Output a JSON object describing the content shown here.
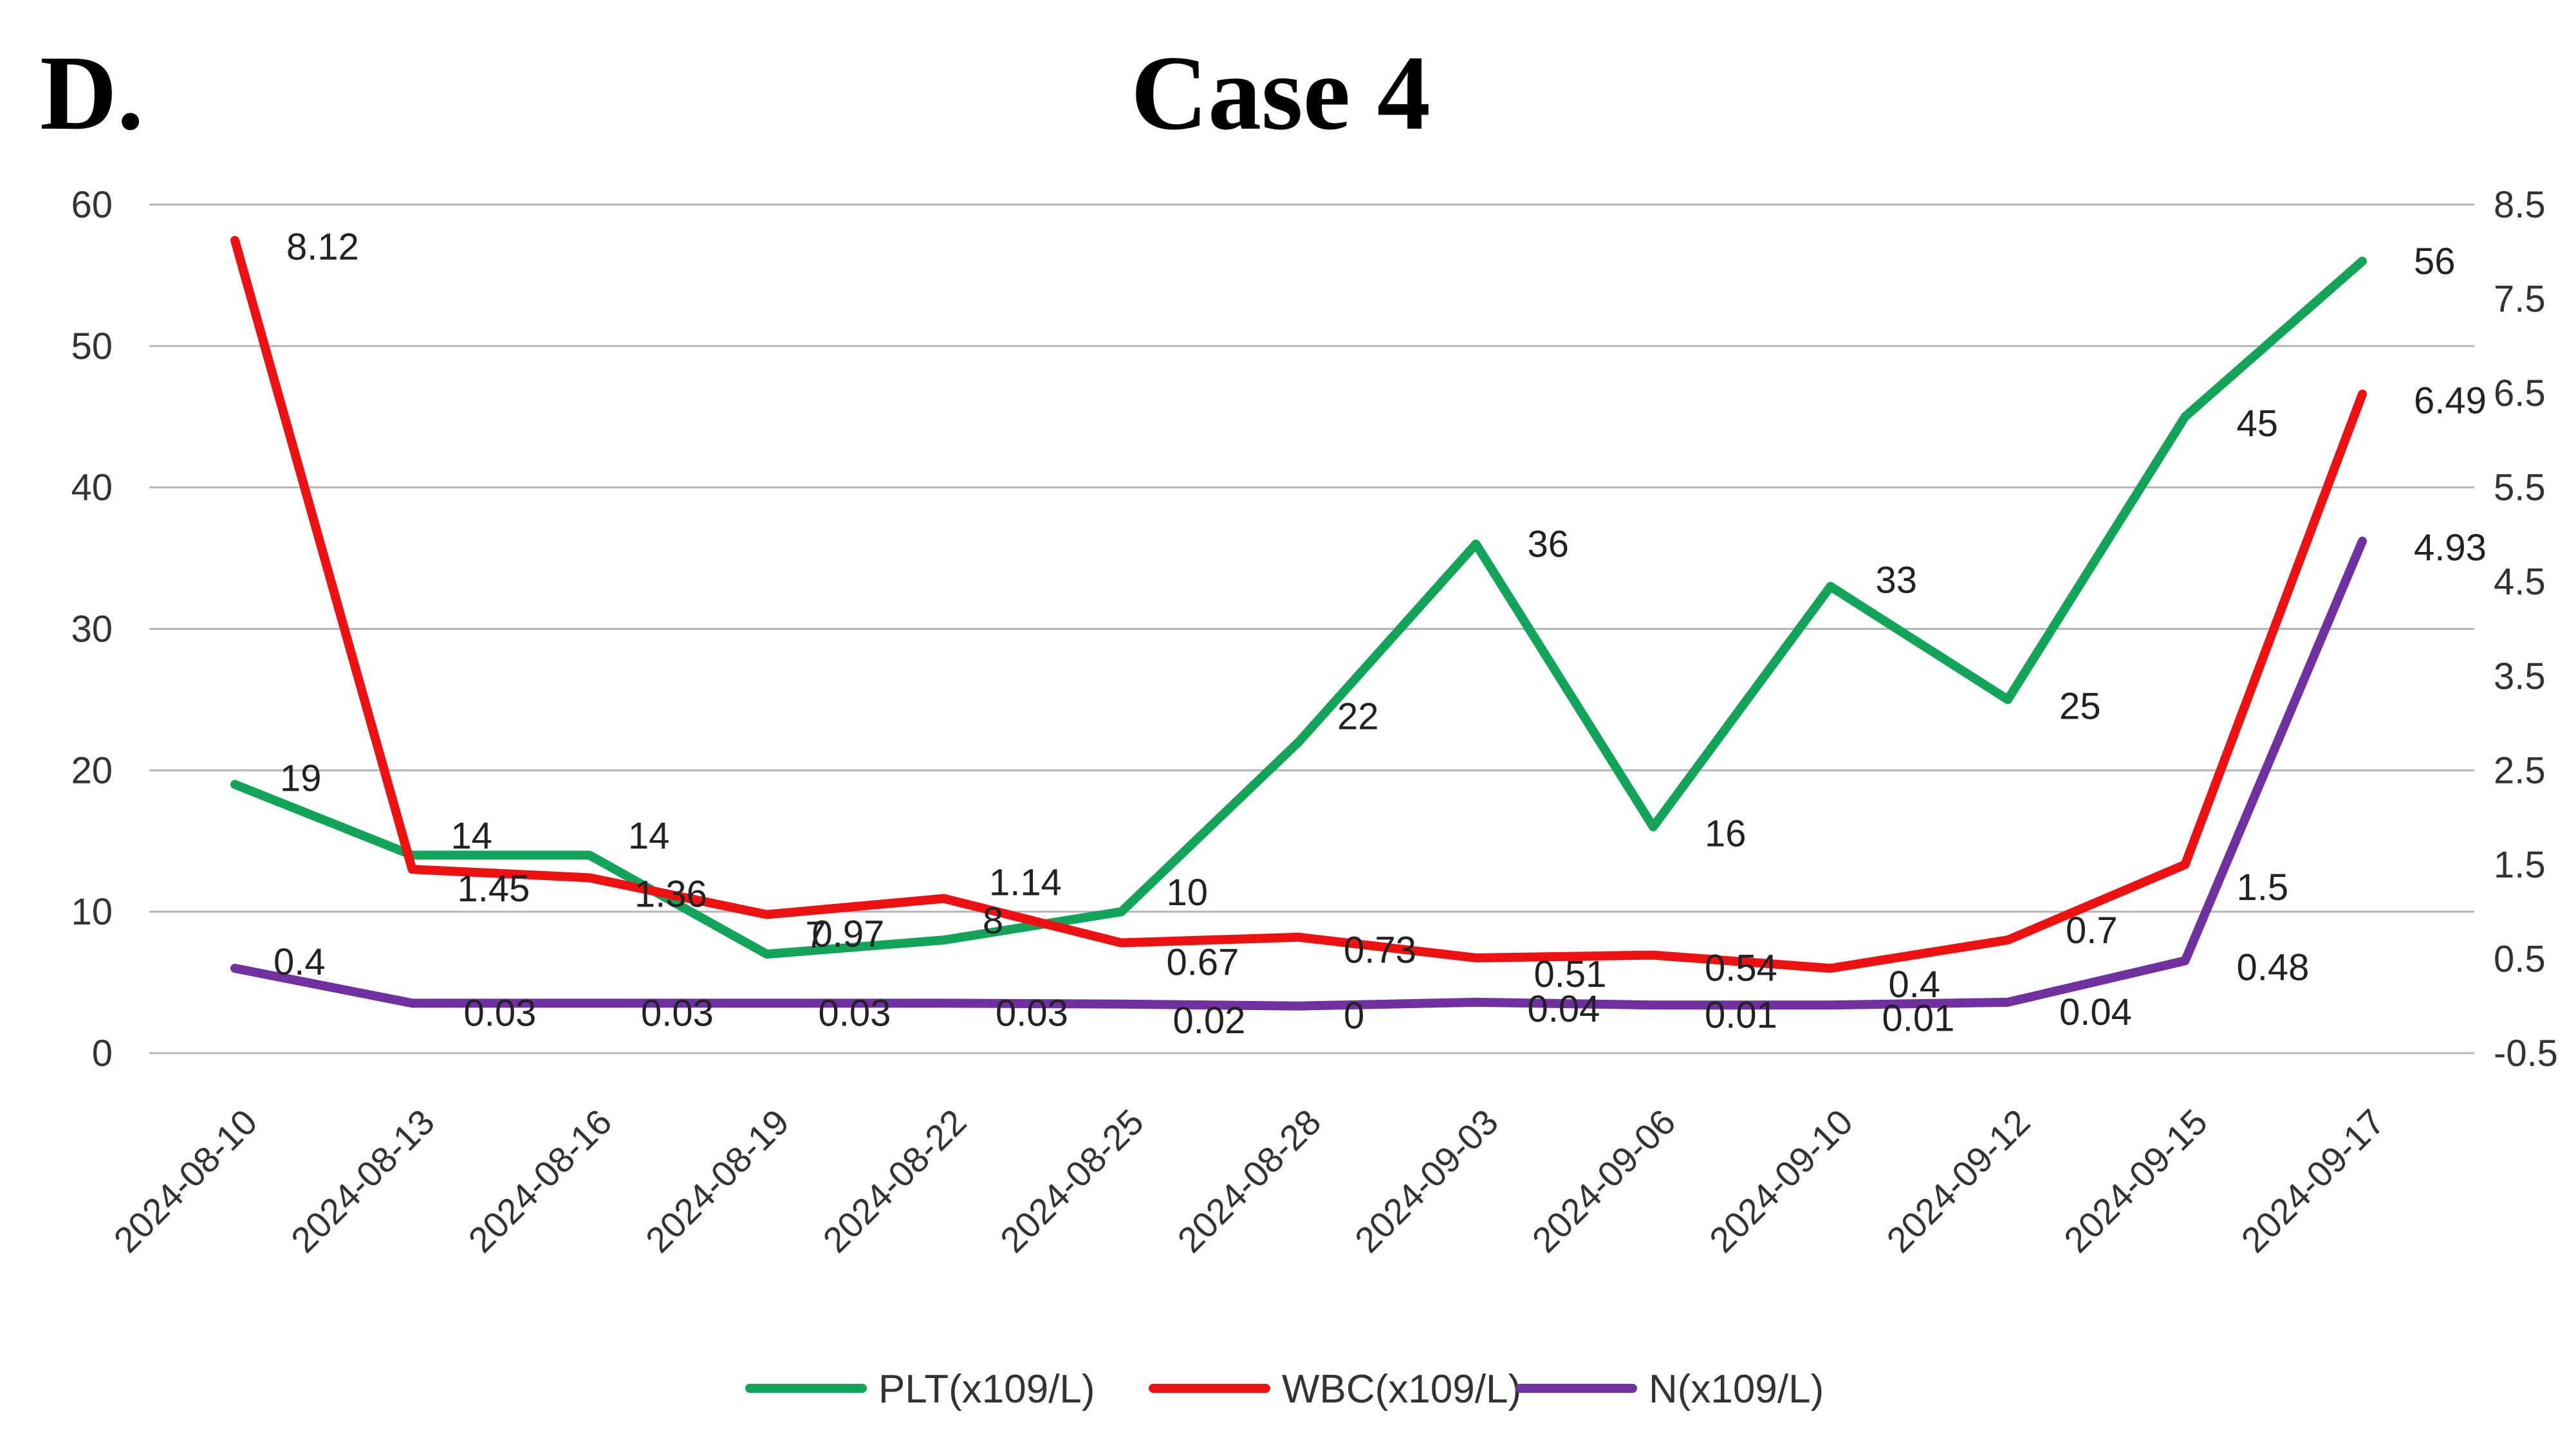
{
  "panel_label": "D.",
  "chart_data": {
    "type": "line",
    "title": "Case 4",
    "categories": [
      "2024-08-10",
      "2024-08-13",
      "2024-08-16",
      "2024-08-19",
      "2024-08-22",
      "2024-08-25",
      "2024-08-28",
      "2024-09-03",
      "2024-09-06",
      "2024-09-10",
      "2024-09-12",
      "2024-09-15",
      "2024-09-17"
    ],
    "y_left": {
      "min": 0,
      "max": 60,
      "ticks": [
        "0",
        "10",
        "20",
        "30",
        "40",
        "50",
        "60"
      ]
    },
    "y_right": {
      "min": -0.5,
      "max": 8.5,
      "ticks": [
        "-0.5",
        "0.5",
        "1.5",
        "2.5",
        "3.5",
        "4.5",
        "5.5",
        "6.5",
        "7.5",
        "8.5"
      ]
    },
    "grid": true,
    "legend_position": "bottom",
    "series": [
      {
        "name": "PLT(x109/L)",
        "axis": "left",
        "color": "#12a55a",
        "values": [
          19,
          14,
          14,
          7,
          8,
          10,
          22,
          36,
          16,
          33,
          25,
          45,
          56
        ],
        "labels": [
          "19",
          "14",
          "14",
          "7",
          "8",
          "10",
          "22",
          "36",
          "16",
          "33",
          "25",
          "45",
          "56"
        ]
      },
      {
        "name": "WBC(x109/L)",
        "axis": "right",
        "color": "#ee1111",
        "values": [
          8.12,
          1.45,
          1.36,
          0.97,
          1.14,
          0.67,
          0.73,
          0.51,
          0.54,
          0.4,
          0.7,
          1.5,
          6.49
        ],
        "labels": [
          "8.12",
          "1.45",
          "1.36",
          "0.97",
          "1.14",
          "0.67",
          "0.73",
          "0.51",
          "0.54",
          "0.4",
          "0.7",
          "1.5",
          "6.49"
        ]
      },
      {
        "name": "N(x109/L)",
        "axis": "right",
        "color": "#7030a0",
        "values": [
          0.4,
          0.03,
          0.03,
          0.03,
          0.03,
          0.02,
          0,
          0.04,
          0.01,
          0.01,
          0.04,
          0.48,
          4.93
        ],
        "labels": [
          "0.4",
          "0.03",
          "0.03",
          "0.03",
          "0.03",
          "0.02",
          "0",
          "0.04",
          "0.01",
          "0.01",
          "0.04",
          "0.48",
          "4.93"
        ]
      }
    ]
  }
}
